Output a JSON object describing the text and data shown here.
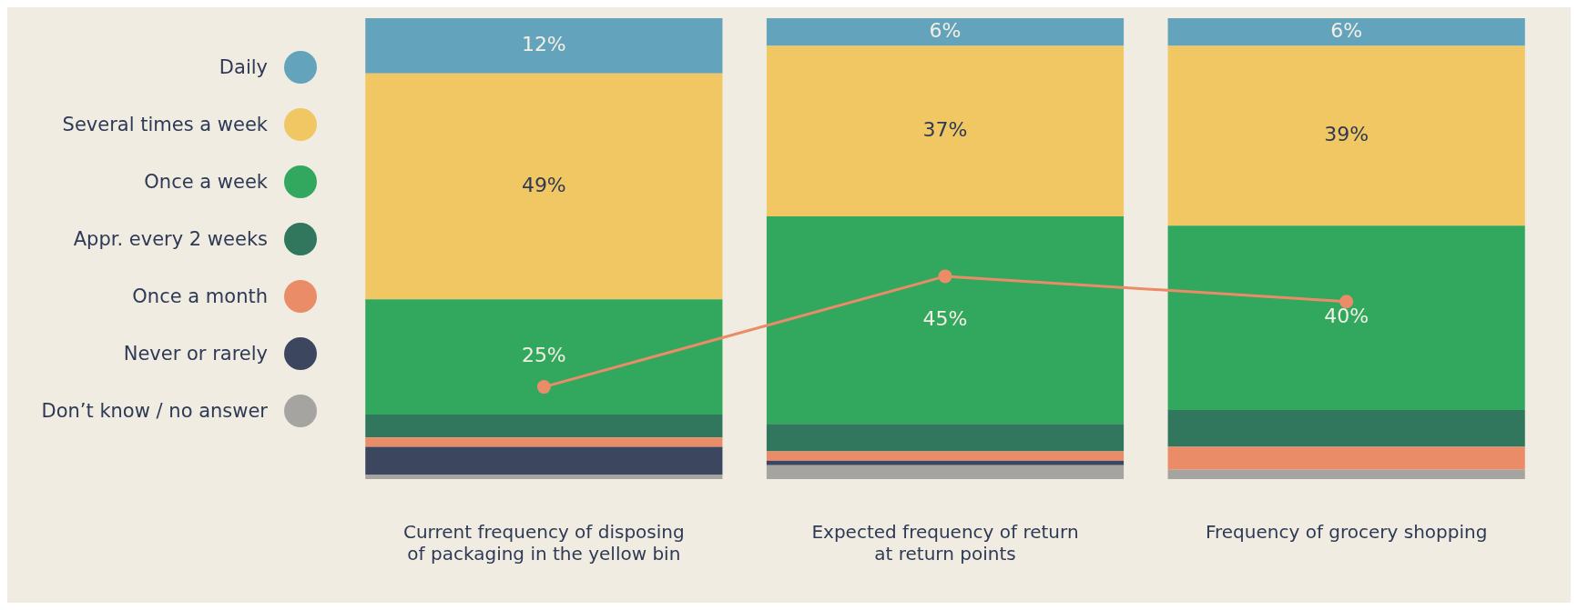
{
  "chart_data": {
    "type": "bar",
    "stacked": true,
    "categories": [
      "Current frequency of disposing of packaging in the yellow bin",
      "Expected frequency of return at return points",
      "Frequency of grocery shopping"
    ],
    "series": [
      {
        "name": "Don’t know / no answer",
        "color": "#a5a4a1",
        "values": [
          1,
          3,
          2
        ]
      },
      {
        "name": "Never or rarely",
        "color": "#3c475f",
        "values": [
          6,
          1,
          0
        ]
      },
      {
        "name": "Once a month",
        "color": "#eb8c69",
        "values": [
          2,
          2,
          5
        ]
      },
      {
        "name": "Appr. every 2 weeks",
        "color": "#30775d",
        "values": [
          5,
          6,
          8
        ]
      },
      {
        "name": "Once a week",
        "color": "#32a85e",
        "values": [
          25,
          45,
          40
        ],
        "value_labels": [
          "25%",
          "45%",
          "40%"
        ]
      },
      {
        "name": "Several times a week",
        "color": "#f0c762",
        "values": [
          49,
          37,
          39
        ],
        "value_labels": [
          "49%",
          "37%",
          "39%"
        ]
      },
      {
        "name": "Daily",
        "color": "#64a3bc",
        "values": [
          12,
          6,
          6
        ],
        "value_labels": [
          "12%",
          "6%",
          "6%"
        ]
      },
      {
        "type": "line",
        "color": "#eb8c69",
        "values": [
          20,
          44,
          38.5
        ]
      }
    ],
    "ylim": [
      0,
      100
    ],
    "legend": "left",
    "grid": false,
    "marker": "circle"
  }
}
